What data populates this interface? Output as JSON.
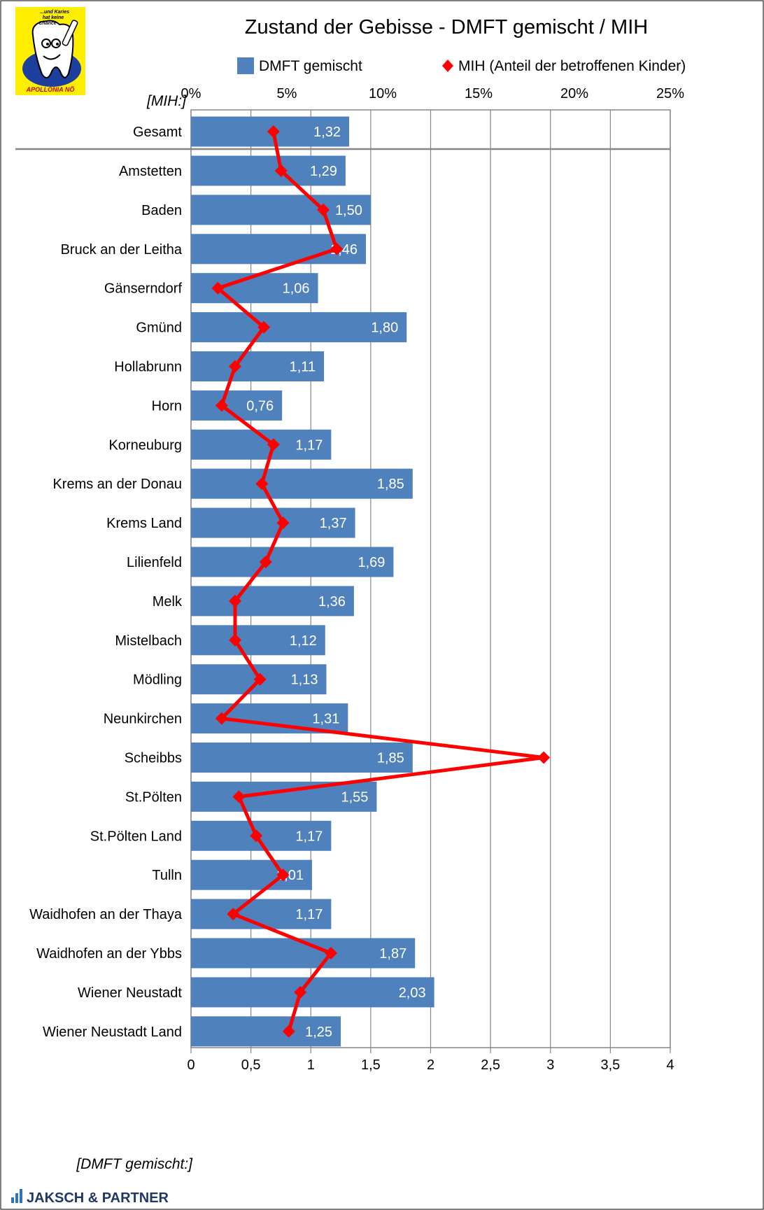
{
  "logo": {
    "line1": "...und Karies",
    "line2": "hat keine",
    "line3": "Chance",
    "name": "APOLLONIA NÖ",
    "icon": "tooth-mascot-icon"
  },
  "footer": {
    "brand": "JAKSCH & PARTNER",
    "icon": "bar-chart-icon"
  },
  "chart_data": {
    "type": "bar",
    "orientation": "horizontal",
    "title": "Zustand der Gebisse - DMFT gemischt / MIH",
    "x_label_bottom": "[DMFT gemischt:]",
    "x_label_top": "[MIH:]",
    "xlim_bottom": [
      0,
      4
    ],
    "xlim_top": [
      0,
      25
    ],
    "ticks_bottom": [
      "0",
      "0,5",
      "1",
      "1,5",
      "2",
      "2,5",
      "3",
      "3,5",
      "4"
    ],
    "ticks_top": [
      "0%",
      "5%",
      "10%",
      "15%",
      "20%",
      "25%"
    ],
    "grid": true,
    "legend_position": "top",
    "colors": {
      "bar": "#4f81bd",
      "line": "#ff0000"
    },
    "categories": [
      "Gesamt",
      "Amstetten",
      "Baden",
      "Bruck an der Leitha",
      "Gänserndorf",
      "Gmünd",
      "Hollabrunn",
      "Horn",
      "Korneuburg",
      "Krems an der Donau",
      "Krems Land",
      "Lilienfeld",
      "Melk",
      "Mistelbach",
      "Mödling",
      "Neunkirchen",
      "Scheibbs",
      "St.Pölten",
      "St.Pölten Land",
      "Tulln",
      "Waidhofen an der Thaya",
      "Waidhofen an der Ybbs",
      "Wiener Neustadt",
      "Wiener Neustadt Land"
    ],
    "series": [
      {
        "name": "DMFT gemischt",
        "kind": "bar",
        "axis": "bottom",
        "values": [
          1.32,
          1.29,
          1.5,
          1.46,
          1.06,
          1.8,
          1.11,
          0.76,
          1.17,
          1.85,
          1.37,
          1.69,
          1.36,
          1.12,
          1.13,
          1.31,
          1.85,
          1.55,
          1.17,
          1.01,
          1.17,
          1.87,
          2.03,
          1.25
        ],
        "labels": [
          "1,32",
          "1,29",
          "1,50",
          "1,46",
          "1,06",
          "1,80",
          "1,11",
          "0,76",
          "1,17",
          "1,85",
          "1,37",
          "1,69",
          "1,36",
          "1,12",
          "1,13",
          "1,31",
          "1,85",
          "1,55",
          "1,17",
          "1,01",
          "1,17",
          "1,87",
          "2,03",
          "1,25"
        ]
      },
      {
        "name": "MIH (Anteil der betroffenen Kinder)",
        "kind": "line",
        "axis": "top",
        "values": [
          4.3,
          4.7,
          6.9,
          7.6,
          1.4,
          3.8,
          2.3,
          1.6,
          4.3,
          3.7,
          4.8,
          3.9,
          2.3,
          2.3,
          3.6,
          1.6,
          18.4,
          2.5,
          3.4,
          4.8,
          2.2,
          7.3,
          5.7,
          5.1
        ]
      }
    ]
  }
}
